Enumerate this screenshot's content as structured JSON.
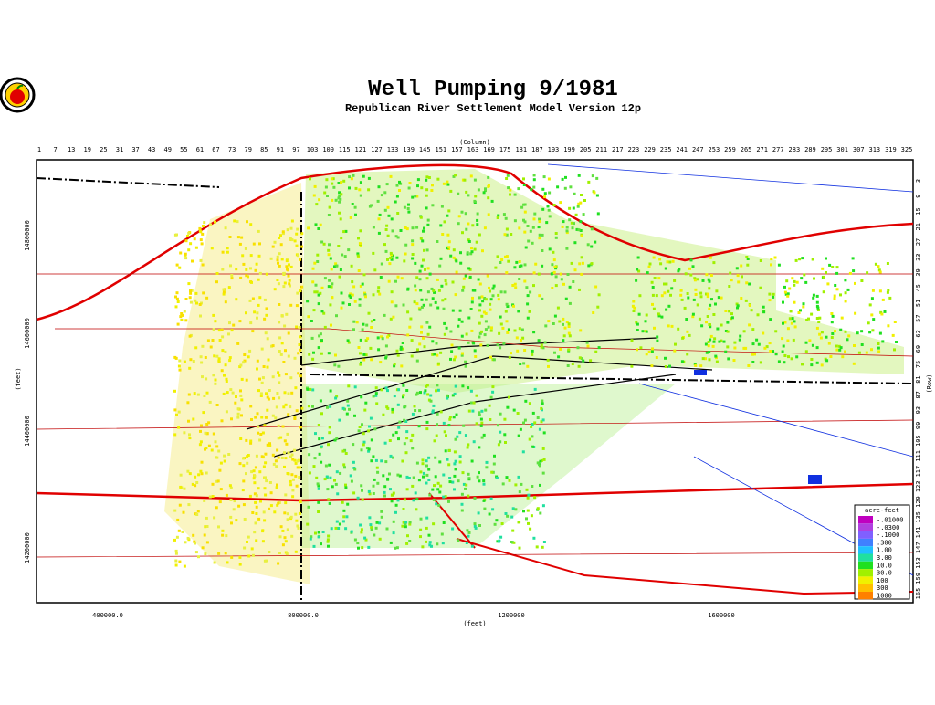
{
  "header": {
    "title": "Well Pumping  9/1981",
    "subtitle": "Republican River Settlement Model Version 12p"
  },
  "axes": {
    "top_label": "(Column)",
    "columns": [
      1,
      7,
      13,
      19,
      25,
      31,
      37,
      43,
      49,
      55,
      61,
      67,
      73,
      79,
      85,
      91,
      97,
      103,
      109,
      115,
      121,
      127,
      133,
      139,
      145,
      151,
      157,
      163,
      169,
      175,
      181,
      187,
      193,
      199,
      205,
      211,
      217,
      223,
      229,
      235,
      241,
      247,
      253,
      259,
      265,
      271,
      277,
      283,
      289,
      295,
      301,
      307,
      313,
      319,
      325
    ],
    "right_label": "(Row)",
    "rows": [
      3,
      9,
      15,
      21,
      27,
      33,
      39,
      45,
      51,
      57,
      63,
      69,
      75,
      81,
      87,
      93,
      99,
      105,
      111,
      117,
      123,
      129,
      135,
      141,
      147,
      153,
      159,
      165
    ],
    "left_label": "(feet)",
    "left_ticks": [
      "14800000",
      "14600000",
      "14400000",
      "14200000"
    ],
    "bottom_label": "(feet)",
    "bottom_ticks": [
      "400000.0",
      "800000.0",
      "1200000",
      "1600000"
    ]
  },
  "legend": {
    "title": "acre-feet",
    "entries": [
      {
        "label": "-.01000",
        "color": "#c000c0"
      },
      {
        "label": "-.0300",
        "color": "#b040e0"
      },
      {
        "label": "-.1000",
        "color": "#8060ff"
      },
      {
        "label": ".300",
        "color": "#4080ff"
      },
      {
        "label": "1.00",
        "color": "#20c0ff"
      },
      {
        "label": "3.00",
        "color": "#20e0a0"
      },
      {
        "label": "10.0",
        "color": "#20e020"
      },
      {
        "label": "30.0",
        "color": "#a0f000"
      },
      {
        "label": "100",
        "color": "#f0f000"
      },
      {
        "label": "300",
        "color": "#ffc000"
      },
      {
        "label": "1000",
        "color": "#ff8000"
      }
    ]
  }
}
